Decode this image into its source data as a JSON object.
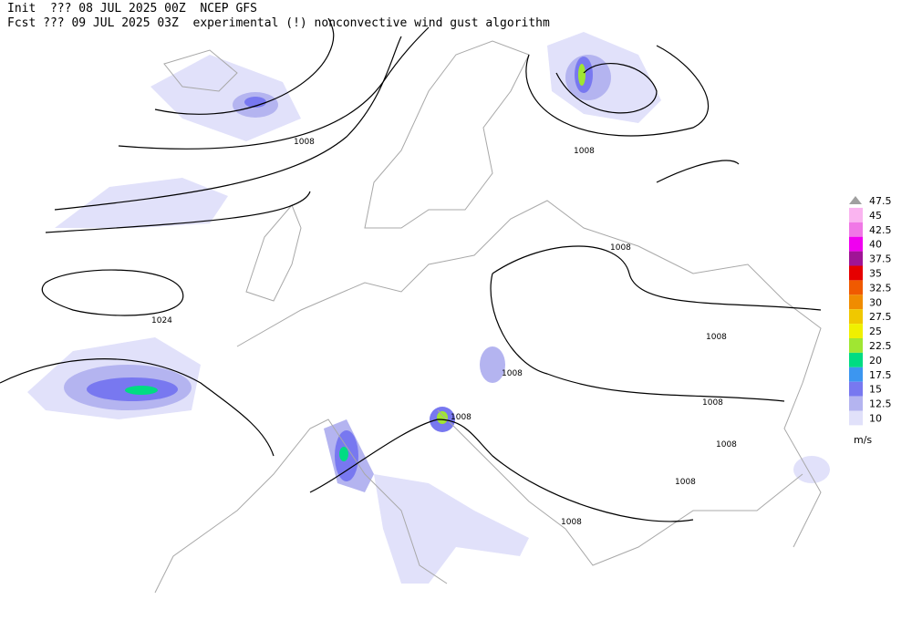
{
  "header": {
    "init_line": "Init  ??? 08 JUL 2025 00Z  NCEP GFS",
    "fcst_line": "Fcst ??? 09 JUL 2025 03Z  experimental (!) nonconvective wind gust algorithm"
  },
  "isobar_labels": [
    "1008",
    "1008",
    "1008",
    "1008",
    "1008",
    "1008",
    "1008",
    "1008",
    "1008",
    "1008",
    "1024"
  ],
  "legend": {
    "items": [
      {
        "label": "47.5",
        "color": "#a0a0a0"
      },
      {
        "label": "45",
        "color": "#fab4f0"
      },
      {
        "label": "42.5",
        "color": "#f078e6"
      },
      {
        "label": "40",
        "color": "#f000f0"
      },
      {
        "label": "37.5",
        "color": "#a01496"
      },
      {
        "label": "35",
        "color": "#e60000"
      },
      {
        "label": "32.5",
        "color": "#f05a00"
      },
      {
        "label": "30",
        "color": "#f08c00"
      },
      {
        "label": "27.5",
        "color": "#f0c800"
      },
      {
        "label": "25",
        "color": "#f0f000"
      },
      {
        "label": "22.5",
        "color": "#a0e632"
      },
      {
        "label": "20",
        "color": "#00dc82"
      },
      {
        "label": "17.5",
        "color": "#3c96f0"
      },
      {
        "label": "15",
        "color": "#7878f0"
      },
      {
        "label": "12.5",
        "color": "#b4b4f0"
      },
      {
        "label": "10",
        "color": "#e1e1fa"
      }
    ],
    "unit": "m/s"
  }
}
